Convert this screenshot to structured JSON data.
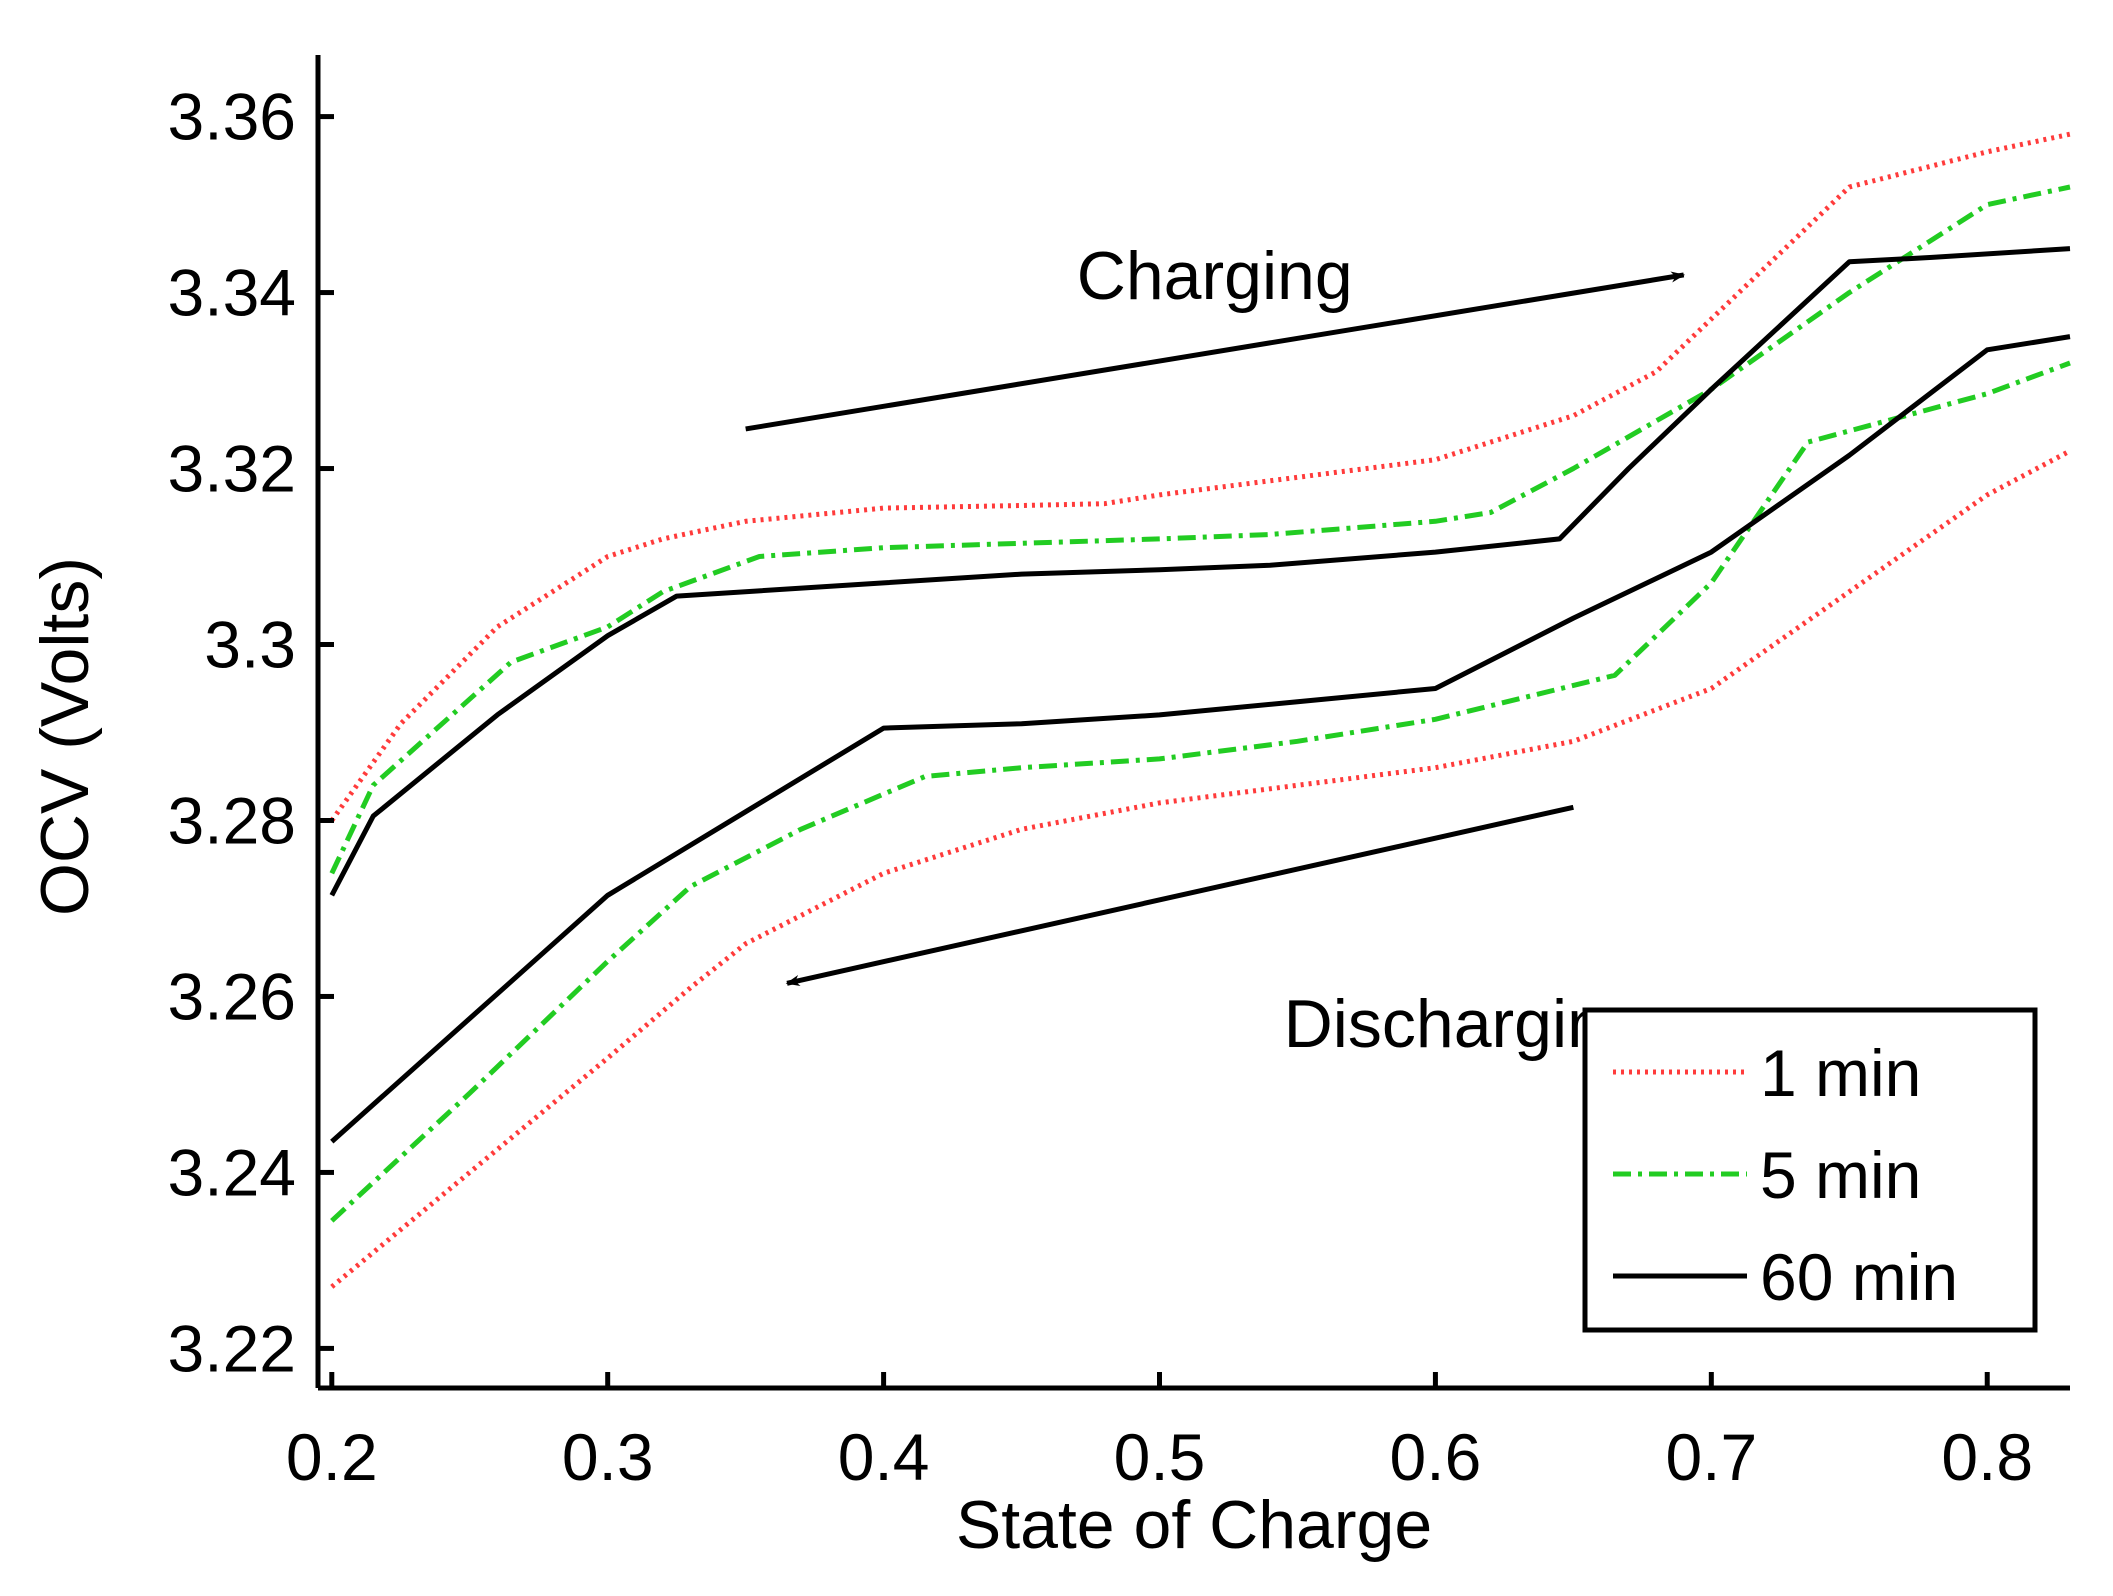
{
  "chart_data": {
    "type": "line",
    "xlabel": "State of Charge",
    "ylabel": "OCV (Volts)",
    "xlim": [
      0.195,
      0.83
    ],
    "ylim": [
      3.2155,
      3.367
    ],
    "x_ticks": [
      0.2,
      0.3,
      0.4,
      0.5,
      0.6,
      0.7,
      0.8
    ],
    "x_tick_labels": [
      "0.2",
      "0.3",
      "0.4",
      "0.5",
      "0.6",
      "0.7",
      "0.8"
    ],
    "y_ticks": [
      3.22,
      3.24,
      3.26,
      3.28,
      3.3,
      3.32,
      3.34,
      3.36
    ],
    "y_tick_labels": [
      "3.22",
      "3.24",
      "3.26",
      "3.28",
      "3.3",
      "3.32",
      "3.34",
      "3.36"
    ],
    "grid": false,
    "legend_position": "bottom-right",
    "colors": {
      "1min": "#ff3b3b",
      "5min": "#22cc22",
      "60min": "#000000"
    },
    "annotations": [
      {
        "text": "Charging",
        "x": 0.47,
        "y": 3.342,
        "arrow_from": [
          0.35,
          3.3245
        ],
        "arrow_to": [
          0.69,
          3.342
        ]
      },
      {
        "text": "Discharging",
        "x": 0.545,
        "y": 3.257,
        "arrow_from": [
          0.65,
          3.2815
        ],
        "arrow_to": [
          0.365,
          3.2615
        ]
      }
    ],
    "series": [
      {
        "name": "1 min",
        "legend_label": "1 min",
        "color": "#ff3b3b",
        "style": "dotted",
        "x": [
          0.2,
          0.225,
          0.26,
          0.3,
          0.32,
          0.35,
          0.4,
          0.45,
          0.48,
          0.5,
          0.55,
          0.6,
          0.65,
          0.68,
          0.7,
          0.75,
          0.8,
          0.83
        ],
        "y": [
          3.28,
          3.291,
          3.302,
          3.31,
          3.312,
          3.314,
          3.3155,
          3.3158,
          3.316,
          3.317,
          3.319,
          3.321,
          3.326,
          3.331,
          3.337,
          3.352,
          3.356,
          3.358
        ]
      },
      {
        "name": "5 min",
        "legend_label": "5 min",
        "color": "#22cc22",
        "style": "dashdot",
        "x": [
          0.2,
          0.215,
          0.265,
          0.3,
          0.32,
          0.355,
          0.4,
          0.45,
          0.5,
          0.54,
          0.6,
          0.62,
          0.65,
          0.7,
          0.75,
          0.8,
          0.83
        ],
        "y": [
          3.274,
          3.284,
          3.298,
          3.302,
          3.306,
          3.31,
          3.311,
          3.3115,
          3.312,
          3.3125,
          3.314,
          3.315,
          3.32,
          3.329,
          3.34,
          3.35,
          3.352
        ]
      },
      {
        "name": "60 min",
        "legend_label": "60 min",
        "color": "#000000",
        "style": "solid",
        "x": [
          0.2,
          0.215,
          0.26,
          0.3,
          0.325,
          0.4,
          0.45,
          0.5,
          0.54,
          0.6,
          0.645,
          0.67,
          0.7,
          0.75,
          0.78,
          0.83
        ],
        "y": [
          3.2715,
          3.2805,
          3.292,
          3.301,
          3.3055,
          3.307,
          3.308,
          3.3085,
          3.309,
          3.3105,
          3.312,
          3.32,
          3.329,
          3.3435,
          3.344,
          3.345
        ]
      },
      {
        "name": "1 min",
        "color": "#ff3b3b",
        "style": "dotted",
        "x": [
          0.2,
          0.25,
          0.3,
          0.33,
          0.35,
          0.4,
          0.45,
          0.5,
          0.55,
          0.6,
          0.65,
          0.7,
          0.75,
          0.8,
          0.83
        ],
        "y": [
          3.227,
          3.24,
          3.253,
          3.261,
          3.266,
          3.274,
          3.279,
          3.282,
          3.284,
          3.286,
          3.289,
          3.295,
          3.306,
          3.317,
          3.322
        ]
      },
      {
        "name": "5 min",
        "color": "#22cc22",
        "style": "dashdot",
        "x": [
          0.2,
          0.25,
          0.3,
          0.33,
          0.37,
          0.415,
          0.45,
          0.5,
          0.55,
          0.6,
          0.665,
          0.7,
          0.735,
          0.8,
          0.83
        ],
        "y": [
          3.2345,
          3.249,
          3.264,
          3.2725,
          3.279,
          3.285,
          3.286,
          3.287,
          3.289,
          3.2915,
          3.2965,
          3.307,
          3.323,
          3.3285,
          3.332
        ]
      },
      {
        "name": "60 min",
        "color": "#000000",
        "style": "solid",
        "x": [
          0.2,
          0.25,
          0.3,
          0.35,
          0.4,
          0.45,
          0.5,
          0.55,
          0.6,
          0.65,
          0.7,
          0.75,
          0.8,
          0.83
        ],
        "y": [
          3.2435,
          3.2575,
          3.2715,
          3.281,
          3.2905,
          3.291,
          3.292,
          3.2935,
          3.295,
          3.303,
          3.3105,
          3.3215,
          3.3335,
          3.335
        ]
      }
    ]
  }
}
